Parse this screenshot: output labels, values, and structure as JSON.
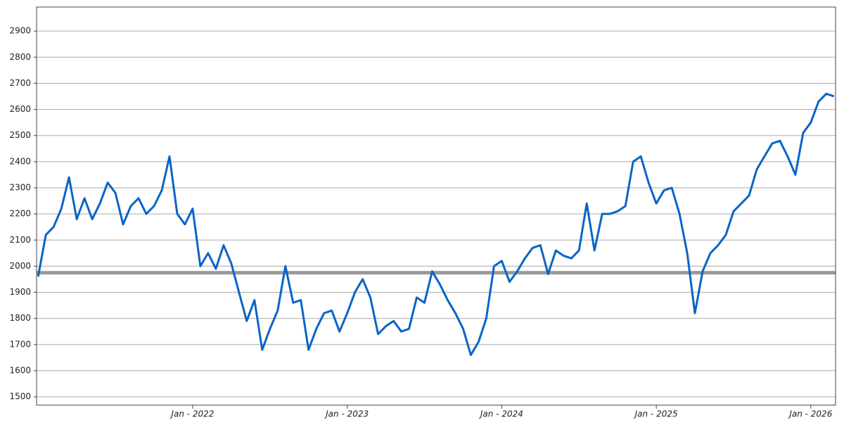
{
  "chart_data": {
    "type": "line",
    "x": [
      2021.0,
      2021.05,
      2021.1,
      2021.15,
      2021.2,
      2021.25,
      2021.3,
      2021.35,
      2021.4,
      2021.45,
      2021.5,
      2021.55,
      2021.6,
      2021.65,
      2021.7,
      2021.75,
      2021.8,
      2021.85,
      2021.9,
      2021.95,
      2022.0,
      2022.05,
      2022.1,
      2022.15,
      2022.2,
      2022.25,
      2022.3,
      2022.35,
      2022.4,
      2022.45,
      2022.5,
      2022.55,
      2022.6,
      2022.65,
      2022.7,
      2022.75,
      2022.8,
      2022.85,
      2022.9,
      2022.95,
      2023.0,
      2023.05,
      2023.1,
      2023.15,
      2023.2,
      2023.25,
      2023.3,
      2023.35,
      2023.4,
      2023.45,
      2023.5,
      2023.55,
      2023.6,
      2023.65,
      2023.7,
      2023.75,
      2023.8,
      2023.85,
      2023.9,
      2023.95,
      2024.0,
      2024.05,
      2024.1,
      2024.15,
      2024.2,
      2024.25,
      2024.3,
      2024.35,
      2024.4,
      2024.45,
      2024.5,
      2024.55,
      2024.6,
      2024.65,
      2024.7,
      2024.75,
      2024.8,
      2024.85,
      2024.9,
      2024.95,
      2025.0,
      2025.05,
      2025.1,
      2025.15,
      2025.2,
      2025.25,
      2025.3,
      2025.35,
      2025.4,
      2025.45,
      2025.5,
      2025.55,
      2025.6,
      2025.65,
      2025.7,
      2025.75,
      2025.8,
      2025.85,
      2025.9,
      2025.95,
      2026.0,
      2026.05,
      2026.1,
      2026.15
    ],
    "series": [
      {
        "color": "#0a64c8",
        "values": [
          1960,
          2120,
          2150,
          2220,
          2340,
          2180,
          2260,
          2180,
          2240,
          2320,
          2280,
          2160,
          2230,
          2260,
          2200,
          2230,
          2290,
          2420,
          2200,
          2160,
          2220,
          2000,
          2050,
          1990,
          2080,
          2010,
          1900,
          1790,
          1870,
          1680,
          1760,
          1830,
          2000,
          1860,
          1870,
          1680,
          1760,
          1820,
          1830,
          1750,
          1820,
          1900,
          1950,
          1880,
          1740,
          1770,
          1790,
          1750,
          1760,
          1880,
          1860,
          1980,
          1930,
          1870,
          1820,
          1760,
          1660,
          1710,
          1800,
          2000,
          2020,
          1940,
          1980,
          2030,
          2070,
          2080,
          1970,
          2060,
          2040,
          2030,
          2060,
          2240,
          2060,
          2200,
          2200,
          2210,
          2230,
          2400,
          2420,
          2320,
          2240,
          2290,
          2300,
          2200,
          2050,
          1820,
          1980,
          2050,
          2080,
          2120,
          2210,
          2240,
          2270,
          2370,
          2420,
          2470,
          2480,
          2420,
          2350,
          2510,
          2550,
          2630,
          2660,
          2650
        ]
      }
    ],
    "reference_line": 1975,
    "xlim": [
      2020.99,
      2026.16
    ],
    "xticks": [
      {
        "value": 2022,
        "label": "Jan - 2022"
      },
      {
        "value": 2023,
        "label": "Jan - 2023"
      },
      {
        "value": 2024,
        "label": "Jan - 2024"
      },
      {
        "value": 2025,
        "label": "Jan - 2025"
      },
      {
        "value": 2026,
        "label": "Jan - 2026"
      }
    ],
    "ylim": [
      1468,
      2992
    ],
    "yticks": [
      1500,
      1600,
      1700,
      1800,
      1900,
      2000,
      2100,
      2200,
      2300,
      2400,
      2500,
      2600,
      2700,
      2800,
      2900
    ],
    "grid": true
  }
}
